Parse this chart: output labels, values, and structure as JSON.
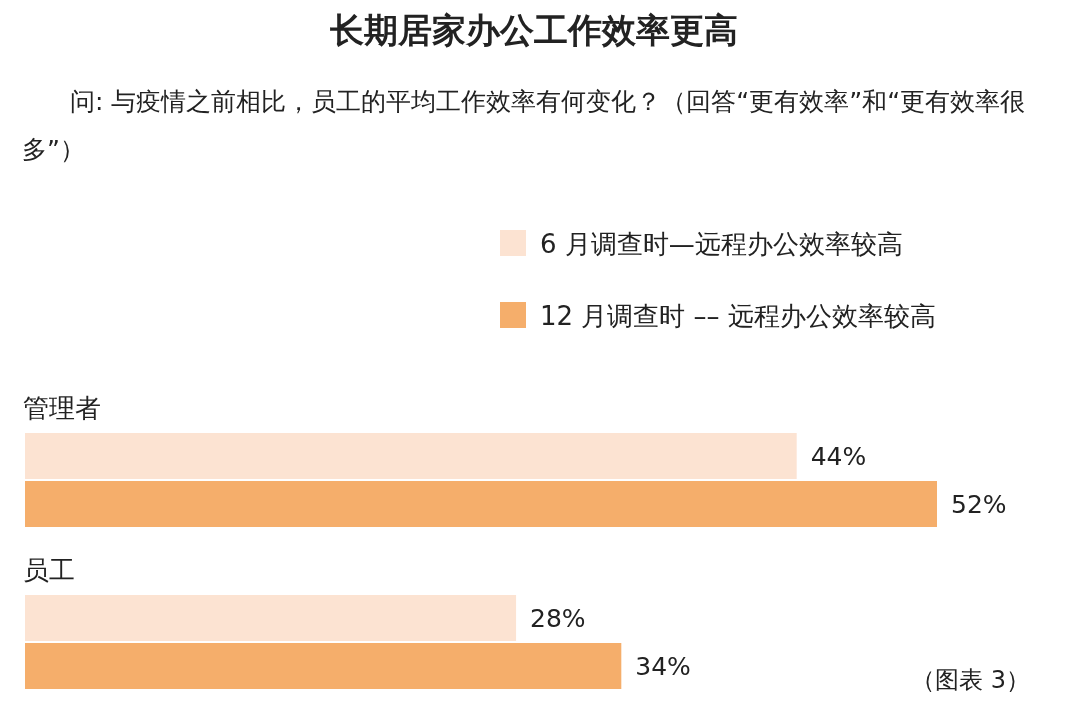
{
  "chart_data": {
    "type": "bar",
    "orientation": "horizontal",
    "title": "长期居家办公工作效率更高",
    "subtitle": "问: 与疫情之前相比，员工的平均工作效率有何变化？（回答“更有效率”和“更有效率很多”）",
    "categories": [
      "管理者",
      "员工"
    ],
    "legend": "top right",
    "series": [
      {
        "name": "6 月调查时—远程办公效率较高",
        "color": "#fce3d2",
        "values": [
          44,
          28
        ],
        "value_labels": [
          "44%",
          "28%"
        ]
      },
      {
        "name": "12 月调查时 –– 远程办公效率较高",
        "color": "#f5ae6b",
        "values": [
          52,
          34
        ],
        "value_labels": [
          "52%",
          "34%"
        ]
      }
    ],
    "annotations": [
      "（图表 3）"
    ]
  }
}
